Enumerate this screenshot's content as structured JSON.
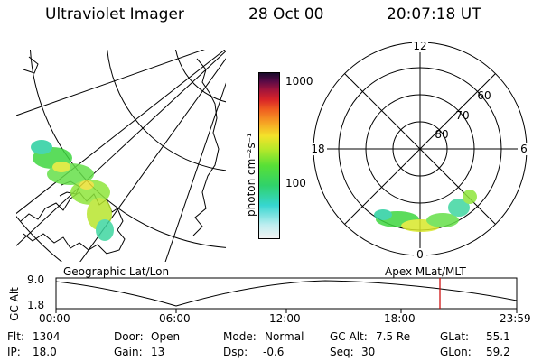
{
  "header": {
    "instrument": "Ultraviolet Imager",
    "date": "28 Oct 00",
    "time": "20:07:18 UT"
  },
  "colorbar": {
    "label": "photon cm⁻²s⁻¹",
    "ticks": [
      "1000",
      "100"
    ]
  },
  "polar_grid": {
    "mlt_labels": [
      "12",
      "18",
      "6",
      "0"
    ],
    "lat_labels": [
      "60",
      "70",
      "80"
    ]
  },
  "map_labels": {
    "geographic": "Geographic Lat/Lon",
    "apex": "Apex MLat/MLT"
  },
  "timeline": {
    "axis_label": "GC Alt",
    "y_ticks": [
      "9.0",
      "1.8"
    ],
    "x_ticks": [
      "00:00",
      "06:00",
      "12:00",
      "18:00",
      "23:59"
    ],
    "current_marker_color": "#cc0000"
  },
  "status": {
    "flt_label": "Flt:",
    "flt_value": "1304",
    "ip_label": "IP:",
    "ip_value": "18.0",
    "door_label": "Door:",
    "door_value": "Open",
    "gain_label": "Gain:",
    "gain_value": "13",
    "mode_label": "Mode:",
    "mode_value": "Normal",
    "dsp_label": "Dsp:",
    "dsp_value": "-0.6",
    "gcalt_label": "GC Alt:",
    "gcalt_value": "7.5 Re",
    "seq_label": "Seq:",
    "seq_value": "30",
    "glat_label": "GLat:",
    "glat_value": "55.1",
    "glon_label": "GLon:",
    "glon_value": "59.2"
  }
}
